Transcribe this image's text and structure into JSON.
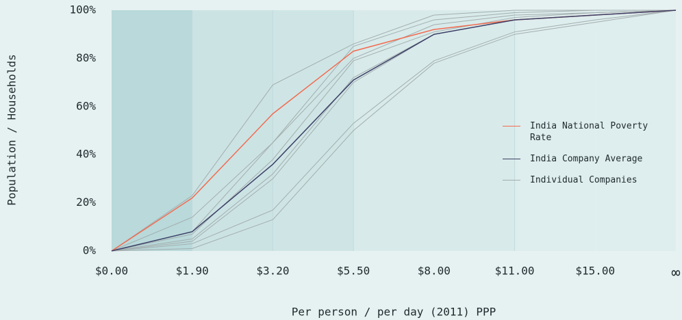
{
  "chart_data": {
    "type": "line",
    "x_label": "Per person / per day (2011) PPP",
    "y_label": "Population / Households",
    "categories": [
      "$0.00",
      "$1.90",
      "$3.20",
      "$5.50",
      "$8.00",
      "$11.00",
      "$15.00",
      "∞"
    ],
    "ylim": [
      0,
      100
    ],
    "yticks": [
      {
        "value": 0,
        "label": "0%"
      },
      {
        "value": 20,
        "label": "20%"
      },
      {
        "value": 40,
        "label": "40%"
      },
      {
        "value": 60,
        "label": "60%"
      },
      {
        "value": 80,
        "label": "80%"
      },
      {
        "value": 100,
        "label": "100%"
      }
    ],
    "series": [
      {
        "name": "India National Poverty Rate",
        "color": "#f26b50",
        "values": [
          0,
          22,
          57,
          83,
          92,
          96,
          98,
          100
        ]
      },
      {
        "name": "India Company Average",
        "color": "#3b3f66",
        "values": [
          0,
          8,
          36,
          71,
          90,
          96,
          98,
          100
        ]
      }
    ],
    "companies": {
      "name": "Individual Companies",
      "color": "#a3adae",
      "values": [
        [
          0,
          23,
          69,
          86,
          98,
          100,
          100,
          100
        ],
        [
          0,
          14,
          45,
          85,
          96,
          99,
          100,
          100
        ],
        [
          0,
          8,
          45,
          80,
          94,
          98,
          99,
          100
        ],
        [
          0,
          7,
          38,
          79,
          91,
          97,
          99,
          100
        ],
        [
          0,
          5,
          32,
          72,
          90,
          96,
          98,
          100
        ],
        [
          0,
          4,
          30,
          70,
          90,
          96,
          98,
          100
        ],
        [
          0,
          3,
          17,
          53,
          79,
          91,
          96,
          100
        ],
        [
          0,
          1,
          13,
          50,
          78,
          90,
          95,
          100
        ]
      ]
    }
  }
}
